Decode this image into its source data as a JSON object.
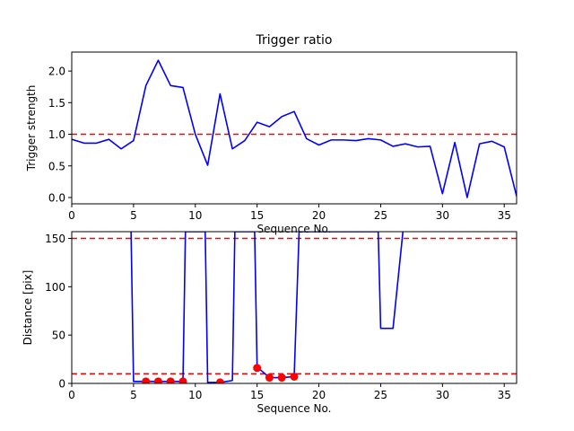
{
  "chart_data": [
    {
      "type": "line",
      "title": "Trigger ratio",
      "xlabel": "Sequence No.",
      "ylabel": "Trigger strength",
      "xlim": [
        0,
        36
      ],
      "ylim": [
        -0.1,
        2.3
      ],
      "xticks": [
        0,
        5,
        10,
        15,
        20,
        25,
        30,
        35
      ],
      "yticks": [
        0.0,
        0.5,
        1.0,
        1.5,
        2.0
      ],
      "ytick_labels": [
        "0.0",
        "0.5",
        "1.0",
        "1.5",
        "2.0"
      ],
      "grid": false,
      "series": [
        {
          "color": "#0000ff",
          "x": [
            0,
            1,
            2,
            3,
            4,
            5,
            6,
            7,
            8,
            9,
            10,
            11,
            12,
            13,
            14,
            15,
            16,
            17,
            18,
            19,
            20,
            21,
            22,
            23,
            24,
            25,
            26,
            27,
            28,
            29,
            30,
            31,
            32,
            33,
            34,
            35,
            36
          ],
          "values": [
            0.92,
            0.86,
            0.86,
            0.92,
            0.77,
            0.9,
            1.77,
            2.17,
            1.77,
            1.74,
            1.0,
            0.51,
            1.64,
            0.77,
            0.9,
            1.19,
            1.12,
            1.28,
            1.36,
            0.93,
            0.83,
            0.91,
            0.91,
            0.9,
            0.93,
            0.91,
            0.81,
            0.85,
            0.8,
            0.81,
            0.06,
            0.87,
            0.0,
            0.85,
            0.89,
            0.8,
            0.02
          ]
        }
      ],
      "reference_lines": [
        {
          "y": 1.0,
          "color": "#ff0000",
          "style": "dashed"
        }
      ]
    },
    {
      "type": "line",
      "title": "",
      "xlabel": "Sequence No.",
      "ylabel": "Distance [pix]",
      "xlim": [
        0,
        36
      ],
      "ylim": [
        0,
        157
      ],
      "xticks": [
        0,
        5,
        10,
        15,
        20,
        25,
        30,
        35
      ],
      "yticks": [
        0,
        50,
        100,
        150
      ],
      "grid": false,
      "series": [
        {
          "color": "#0000ff",
          "x": [
            4.8,
            5,
            6,
            7,
            8,
            9,
            9.2,
            10.8,
            11,
            12,
            13,
            13.2,
            14.8,
            15,
            16,
            17,
            18,
            18.4,
            24.8,
            25,
            26,
            26.8
          ],
          "values": [
            157,
            2,
            2,
            2,
            2,
            2,
            157,
            157,
            1,
            1,
            3,
            157,
            157,
            17,
            6,
            6,
            7,
            157,
            157,
            57,
            57,
            157
          ]
        },
        {
          "color": "#ff0000",
          "markers": true,
          "x": [
            6,
            7,
            8,
            9,
            12,
            15,
            16,
            17,
            18
          ],
          "values": [
            2,
            2,
            2,
            2,
            1,
            16,
            6,
            6,
            7
          ]
        }
      ],
      "reference_lines": [
        {
          "y": 150,
          "color": "#ff0000",
          "style": "dashed"
        },
        {
          "y": 10,
          "color": "#ff0000",
          "style": "dashed"
        }
      ]
    }
  ]
}
